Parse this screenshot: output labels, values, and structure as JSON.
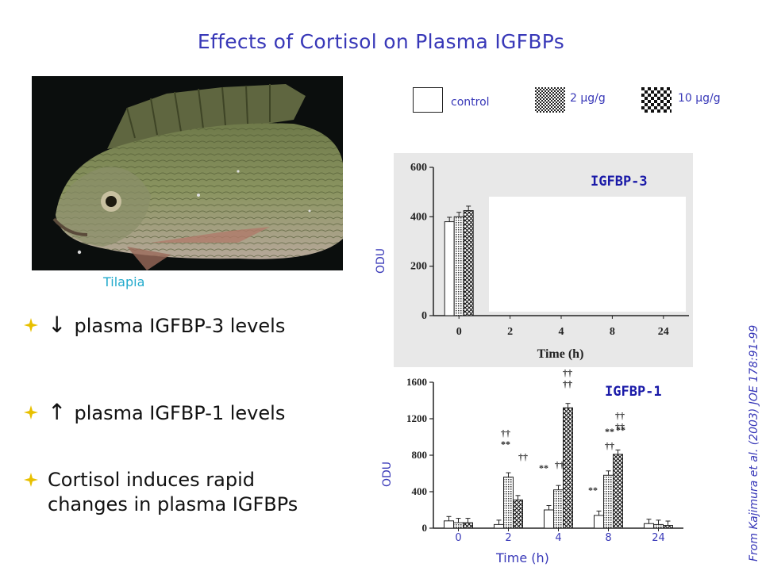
{
  "slide": {
    "title": "Effects of Cortisol on Plasma IGFBPs",
    "photo_caption": "Tilapia",
    "bullets": [
      {
        "arrow": "↓",
        "text": "plasma IGFBP-3 levels"
      },
      {
        "arrow": "↑",
        "text": "plasma IGFBP-1 levels"
      },
      {
        "arrow": "",
        "text": "Cortisol induces rapid"
      },
      {
        "arrow": "",
        "text": "changes in plasma IGFBPs"
      }
    ],
    "citation": "From Kajimura et al. (2003) JOE 178:91-99"
  },
  "legend": {
    "items": [
      {
        "label": "control",
        "pattern": "white"
      },
      {
        "label": "2 μg/g",
        "pattern": "dots"
      },
      {
        "label": "10 μg/g",
        "pattern": "checker"
      }
    ]
  },
  "colors": {
    "title": "#3838b8",
    "caption": "#22aacc",
    "bullet_mark": "#e8c000"
  },
  "chart_data": [
    {
      "type": "bar",
      "title": "IGFBP-3",
      "ylabel": "ODU",
      "xlabel": "Time (h)",
      "categories": [
        "0",
        "2",
        "4",
        "8",
        "24"
      ],
      "yticks": [
        "0",
        "200",
        "400",
        "600"
      ],
      "ylim": [
        0,
        600
      ],
      "series": [
        {
          "name": "control",
          "values": [
            380,
            null,
            null,
            null,
            null
          ]
        },
        {
          "name": "2 μg/g",
          "values": [
            400,
            null,
            null,
            null,
            null
          ]
        },
        {
          "name": "10 μg/g",
          "values": [
            425,
            null,
            null,
            null,
            null
          ]
        }
      ]
    },
    {
      "type": "bar",
      "title": "IGFBP-1",
      "ylabel": "ODU",
      "xlabel": "Time (h)",
      "categories": [
        "0",
        "2",
        "4",
        "8",
        "24"
      ],
      "yticks": [
        "0",
        "400",
        "800",
        "1200",
        "1600"
      ],
      "ylim": [
        0,
        1600
      ],
      "series": [
        {
          "name": "control",
          "values": [
            80,
            40,
            200,
            140,
            50
          ]
        },
        {
          "name": "2 μg/g",
          "values": [
            60,
            560,
            420,
            580,
            40
          ]
        },
        {
          "name": "10 μg/g",
          "values": [
            60,
            310,
            1320,
            810,
            30
          ]
        }
      ],
      "annotations": [
        "††",
        "**",
        "††",
        "**",
        "††",
        "††",
        "††",
        "**",
        "††",
        "††",
        "**",
        "††",
        "**"
      ]
    }
  ]
}
